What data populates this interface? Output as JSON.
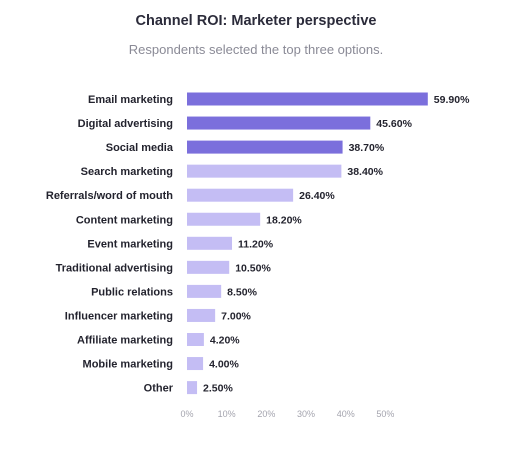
{
  "chart_data": {
    "type": "bar",
    "orientation": "horizontal",
    "title": "Channel ROI: Marketer perspective",
    "subtitle": "Respondents selected the top three options.",
    "categories": [
      "Email marketing",
      "Digital advertising",
      "Social media",
      "Search marketing",
      "Referrals/word of mouth",
      "Content marketing",
      "Event marketing",
      "Traditional advertising",
      "Public relations",
      "Influencer marketing",
      "Affiliate marketing",
      "Mobile marketing",
      "Other"
    ],
    "values": [
      59.9,
      45.6,
      38.7,
      38.4,
      26.4,
      18.2,
      11.2,
      10.5,
      8.5,
      7.0,
      4.2,
      4.0,
      2.5
    ],
    "value_labels": [
      "59.90%",
      "45.60%",
      "38.70%",
      "38.40%",
      "26.40%",
      "18.20%",
      "11.20%",
      "10.50%",
      "8.50%",
      "7.00%",
      "4.20%",
      "4.00%",
      "2.50%"
    ],
    "xticks": [
      "0%",
      "10%",
      "20%",
      "30%",
      "40%",
      "50%"
    ],
    "xlim": [
      0,
      60
    ],
    "highlight_count": 3,
    "colors": {
      "highlight": "#7b6fdc",
      "normal": "#c4bdf4"
    },
    "grid": false,
    "legend": "none"
  }
}
